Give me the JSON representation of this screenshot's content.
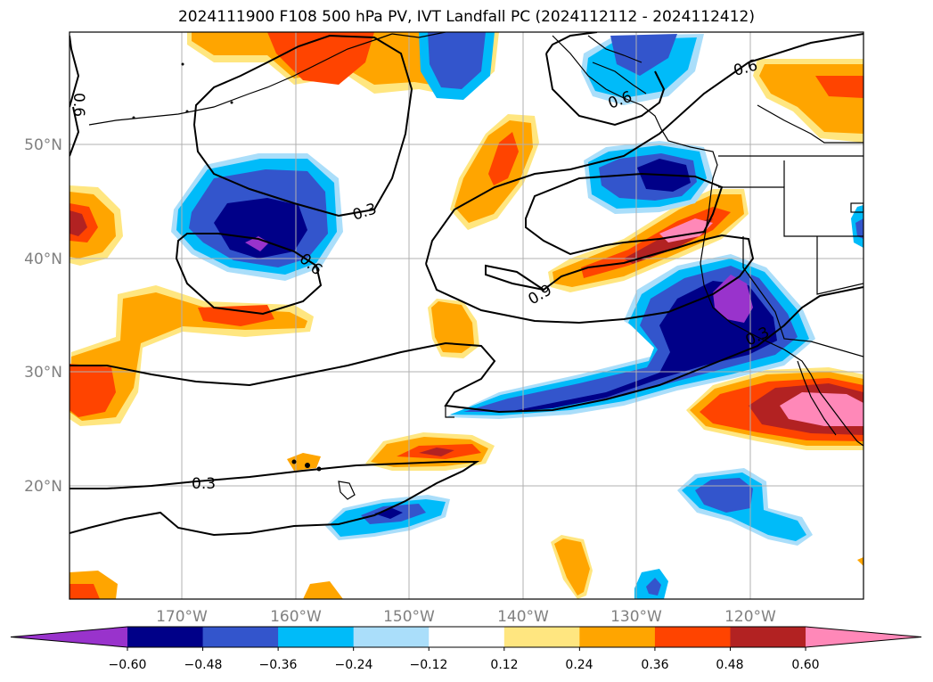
{
  "title": "2024111900 F108 500 hPa PV, IVT Landfall PC (2024112112 - 2024112412)",
  "map": {
    "lat_ticks": [
      "20°N",
      "30°N",
      "40°N",
      "50°N"
    ],
    "lon_ticks": [
      "170°W",
      "160°W",
      "150°W",
      "140°W",
      "130°W",
      "120°W"
    ],
    "contour_labels": [
      "0.3",
      "0.6",
      "0.9",
      "0.3",
      "0.6",
      "0.3",
      "0.6",
      "0.6"
    ],
    "tick_color": "#808080"
  },
  "colorbar": {
    "colors": [
      "#9933cc",
      "#000088",
      "#3355cc",
      "#00bbf9",
      "#aadefa",
      "#ffffff",
      "#ffe680",
      "#ffa500",
      "#ff4400",
      "#b22222",
      "#ff88b8"
    ],
    "tick_labels": [
      "−0.60",
      "−0.48",
      "−0.36",
      "−0.24",
      "−0.12",
      "0.12",
      "0.24",
      "0.36",
      "0.48",
      "0.60"
    ]
  }
}
